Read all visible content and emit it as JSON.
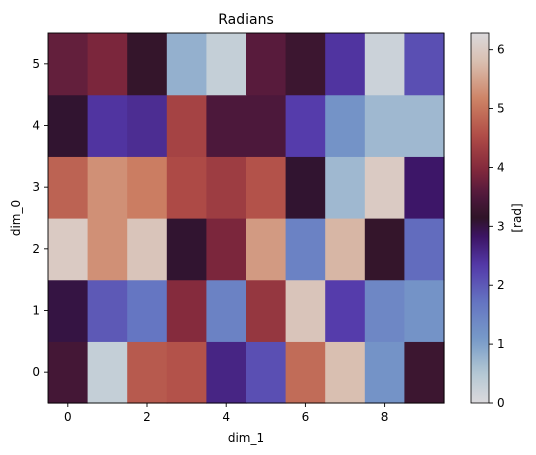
{
  "chart_data": {
    "type": "heatmap",
    "title": "Radians",
    "xlabel": "dim_1",
    "ylabel": "dim_0",
    "x_ticks": [
      "0",
      "2",
      "4",
      "6",
      "8"
    ],
    "y_ticks": [
      "0",
      "1",
      "2",
      "3",
      "4",
      "5"
    ],
    "xlim": [
      -0.5,
      9.5
    ],
    "ylim": [
      -0.5,
      5.5
    ],
    "colorbar": {
      "label": "[rad]",
      "ticks": [
        "0",
        "1",
        "2",
        "3",
        "4",
        "5",
        "6"
      ],
      "range": [
        0,
        6.283185
      ],
      "colormap": "twilight_shifted"
    },
    "rows": [
      [
        3.4,
        0.3,
        4.7,
        4.6,
        2.6,
        2.1,
        4.9,
        5.8,
        1.2,
        3.3
      ],
      [
        3.0,
        2.0,
        1.7,
        4.0,
        1.5,
        4.2,
        5.9,
        2.3,
        1.4,
        1.2
      ],
      [
        6.0,
        5.3,
        5.9,
        3.1,
        3.9,
        5.4,
        1.5,
        5.7,
        3.2,
        1.8
      ],
      [
        4.8,
        5.3,
        5.1,
        4.5,
        4.3,
        4.6,
        3.1,
        0.7,
        6.0,
        2.8
      ],
      [
        3.1,
        2.4,
        2.5,
        4.4,
        3.5,
        3.5,
        2.3,
        1.2,
        0.7,
        0.7
      ],
      [
        3.7,
        3.9,
        3.2,
        0.8,
        0.3,
        3.6,
        3.3,
        2.4,
        0.2,
        2.1
      ]
    ]
  }
}
